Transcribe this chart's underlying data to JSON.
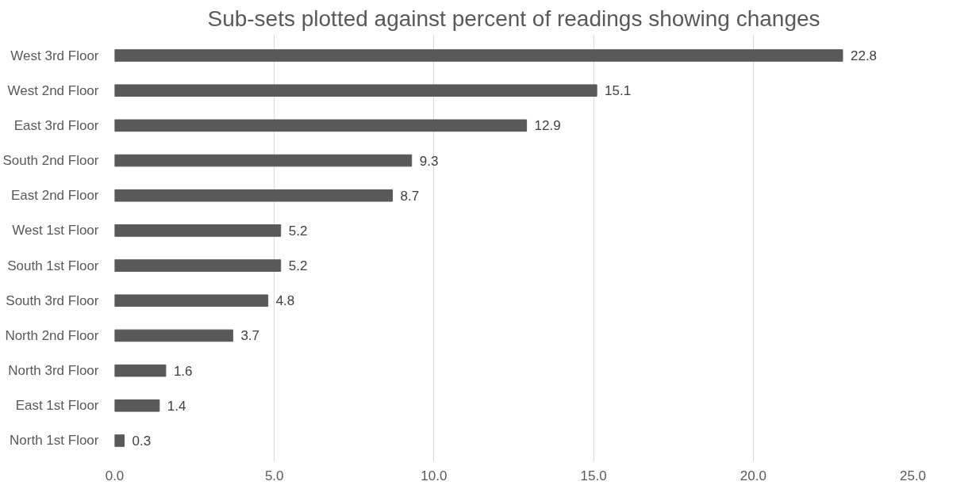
{
  "chart_data": {
    "type": "bar",
    "orientation": "horizontal",
    "title": "Sub-sets plotted against percent of readings showing changes",
    "categories": [
      "West 3rd Floor",
      "West 2nd Floor",
      "East 3rd Floor",
      "South 2nd Floor",
      "East 2nd Floor",
      "West 1st Floor",
      "South 1st Floor",
      "South 3rd Floor",
      "North 2nd Floor",
      "North 3rd Floor",
      "East 1st Floor",
      "North 1st Floor"
    ],
    "values": [
      22.8,
      15.1,
      12.9,
      9.3,
      8.7,
      5.2,
      5.2,
      4.8,
      3.7,
      1.6,
      1.4,
      0.3
    ],
    "color": "#595959",
    "xlim": [
      0,
      25
    ],
    "xticks": [
      {
        "value": 0,
        "label": "0.0"
      },
      {
        "value": 5,
        "label": "5.0"
      },
      {
        "value": 10,
        "label": "10.0"
      },
      {
        "value": 15,
        "label": "15.0"
      },
      {
        "value": 20,
        "label": "20.0"
      },
      {
        "value": 25,
        "label": "25.0"
      }
    ],
    "grid": "x",
    "data_labels": true
  }
}
